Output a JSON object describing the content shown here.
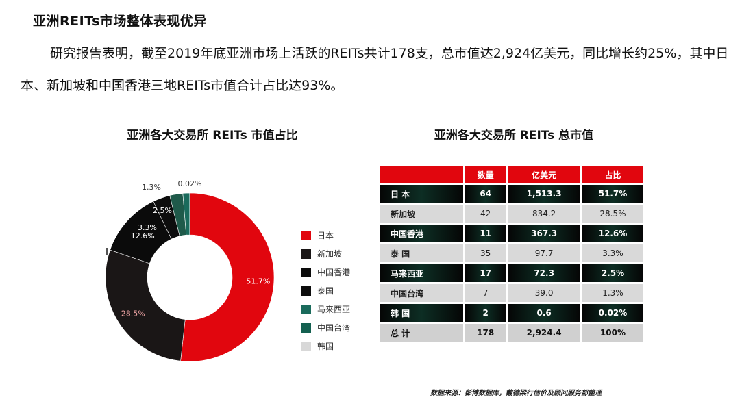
{
  "heading": "亚洲REITs市场整体表现优异",
  "paragraph": "研究报告表明，截至2019年底亚洲市场上活跃的REITs共计178支，总市值达2,924亿美元，同比增长约25%，其中日本、新加坡和中国香港三地REITs市值合计占比达93%。",
  "chart_data": [
    {
      "type": "pie",
      "title": "亚洲各大交易所 REITs 市值占比",
      "categories": [
        "日本",
        "新加坡",
        "中国香港",
        "泰国",
        "马来西亚",
        "中国台湾",
        "韩国"
      ],
      "values": [
        51.7,
        28.5,
        12.6,
        3.3,
        2.5,
        1.3,
        0.02
      ],
      "labels": [
        "51.7%",
        "28.5%",
        "12.6%",
        "3.3%",
        "2.5%",
        "1.3%",
        "0.02%"
      ],
      "colors": [
        "#e1060e",
        "#1a1616",
        "#0b0b0b",
        "#0d0d0d",
        "#1f5a4a",
        "#1a6b5c",
        "#c9c9c9"
      ],
      "legend_position": "right",
      "donut": true
    },
    {
      "type": "table",
      "title": "亚洲各大交易所 REITs 总市值",
      "columns": [
        "",
        "数量",
        "亿美元",
        "占比"
      ],
      "rows": [
        [
          "日 本",
          "64",
          "1,513.3",
          "51.7%"
        ],
        [
          "新加坡",
          "42",
          "834.2",
          "28.5%"
        ],
        [
          "中国香港",
          "11",
          "367.3",
          "12.6%"
        ],
        [
          "泰 国",
          "35",
          "97.7",
          "3.3%"
        ],
        [
          "马来西亚",
          "17",
          "72.3",
          "2.5%"
        ],
        [
          "中国台湾",
          "7",
          "39.0",
          "1.3%"
        ],
        [
          "韩 国",
          "2",
          "0.6",
          "0.02%"
        ]
      ],
      "total": [
        "总 计",
        "178",
        "2,924.4",
        "100%"
      ],
      "row_styles": [
        "dark",
        "light",
        "dark",
        "light",
        "dark",
        "light",
        "dark"
      ],
      "header_color": "#e1060e"
    }
  ],
  "source": "数据来源：彭博数据库，戴德梁行估价及顾问服务部整理"
}
